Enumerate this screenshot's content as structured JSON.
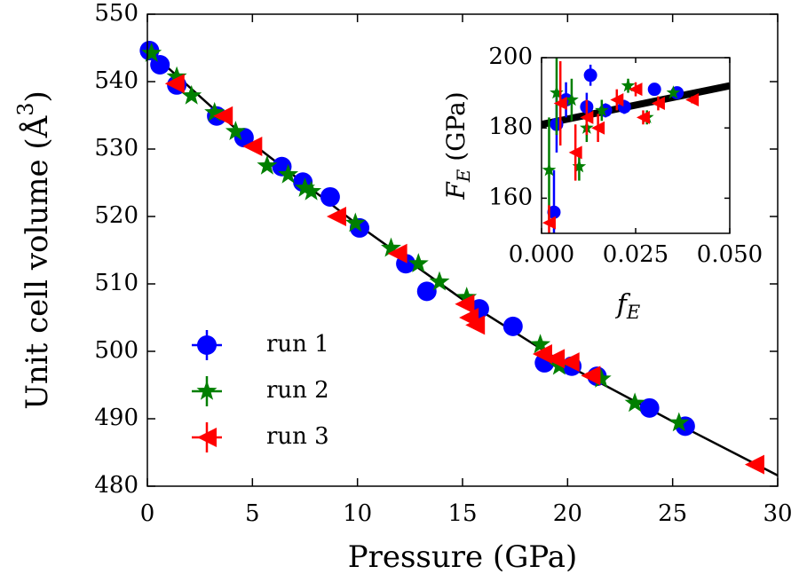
{
  "chart_data": [
    {
      "type": "scatter",
      "xlabel": "Pressure (GPa)",
      "ylabel": {
        "text": "Unit cell volume (Å",
        "sup": "3",
        "close": ")"
      },
      "xlim": [
        0,
        30
      ],
      "ylim": [
        480,
        550
      ],
      "xticks": [
        0,
        5,
        10,
        15,
        20,
        25,
        30
      ],
      "yticks": [
        480,
        490,
        500,
        510,
        520,
        530,
        540,
        550
      ],
      "legend": "lower left",
      "series": [
        {
          "name": "run 1",
          "color": "#0000ff",
          "marker": "circle",
          "x": [
            0.1,
            0.6,
            1.4,
            3.3,
            4.6,
            6.4,
            7.4,
            8.7,
            10.1,
            12.3,
            13.3,
            15.8,
            17.4,
            18.9,
            20.2,
            21.4,
            23.9,
            25.6
          ],
          "values": [
            544.6,
            542.5,
            539.5,
            534.9,
            531.7,
            527.4,
            525.1,
            522.9,
            518.3,
            513.0,
            508.9,
            506.3,
            503.7,
            498.3,
            497.8,
            496.3,
            491.6,
            488.9
          ]
        },
        {
          "name": "run 2",
          "color": "#007f00",
          "marker": "star",
          "x": [
            0.2,
            1.4,
            2.1,
            3.2,
            4.2,
            5.7,
            6.7,
            7.5,
            7.8,
            9.9,
            11.6,
            12.9,
            13.9,
            15.2,
            18.7,
            19.6,
            21.6,
            23.2,
            25.3
          ],
          "values": [
            544.2,
            540.7,
            537.9,
            535.4,
            532.6,
            527.5,
            526.2,
            524.2,
            523.7,
            519.0,
            515.3,
            513.0,
            510.3,
            508.0,
            501.0,
            497.8,
            495.9,
            492.3,
            489.4
          ]
        },
        {
          "name": "run 3",
          "color": "#ff0000",
          "marker": "triangle-left",
          "x": [
            1.3,
            3.6,
            5.0,
            9.0,
            11.9,
            15.1,
            15.3,
            15.6,
            18.8,
            19.4,
            20.1,
            21.1,
            28.9
          ],
          "values": [
            539.7,
            534.9,
            530.4,
            520.0,
            514.5,
            507.0,
            505.0,
            503.9,
            499.6,
            498.9,
            498.4,
            496.4,
            483.2
          ]
        }
      ],
      "fit": {
        "color": "#000000",
        "x": [
          0,
          5,
          10,
          15,
          20,
          25,
          30
        ],
        "values": [
          544.8,
          530.8,
          518.8,
          507.7,
          497.9,
          489.6,
          481.6
        ]
      }
    },
    {
      "type": "scatter",
      "xlabel": {
        "symbol": "f",
        "subscript": "E"
      },
      "ylabel": {
        "symbol": "F",
        "subscript": "E",
        "unit": " (GPa)"
      },
      "xlim": [
        0,
        0.05
      ],
      "ylim": [
        150,
        200
      ],
      "xticks": [
        {
          "value": 0,
          "label": "0.000"
        },
        {
          "value": 0.025,
          "label": "0.025"
        },
        {
          "value": 0.05,
          "label": "0.050"
        }
      ],
      "yticks": [
        160,
        180,
        200
      ],
      "series": [
        {
          "color": "#0000ff",
          "marker": "circle",
          "x": [
            0.0033,
            0.004,
            0.0065,
            0.012,
            0.013,
            0.017,
            0.022,
            0.03,
            0.036
          ],
          "values": [
            156,
            181,
            188,
            186,
            195,
            185,
            186,
            191,
            190
          ],
          "errors": [
            12,
            8,
            5,
            4,
            3,
            2,
            2,
            1,
            1
          ]
        },
        {
          "color": "#007f00",
          "marker": "star",
          "x": [
            0.002,
            0.004,
            0.008,
            0.01,
            0.012,
            0.016,
            0.023,
            0.028,
            0.035
          ],
          "values": [
            168,
            190,
            188,
            169,
            180,
            185,
            192,
            183,
            190
          ],
          "errors": [
            15,
            12,
            6,
            4,
            4,
            3,
            2,
            2,
            1
          ]
        },
        {
          "color": "#ff0000",
          "marker": "triangle-left",
          "x": [
            0.002,
            0.005,
            0.009,
            0.012,
            0.015,
            0.02,
            0.025,
            0.027,
            0.031,
            0.04
          ],
          "values": [
            153,
            187,
            173,
            183,
            180,
            188,
            191,
            183,
            187,
            188
          ],
          "errors": [
            5,
            12,
            8,
            5,
            4,
            3,
            2,
            2,
            2,
            1
          ]
        }
      ],
      "fit": {
        "color": "#000000",
        "x": [
          0,
          0.05
        ],
        "values": [
          181,
          192
        ]
      }
    }
  ]
}
